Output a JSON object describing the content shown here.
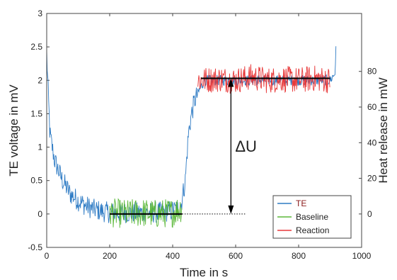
{
  "chart_data": {
    "type": "line",
    "xlabel": "Time  in  s",
    "ylabel_left": "TE voltage  in  mV",
    "ylabel_right": "Heat release  in  mW",
    "xlim": [
      0,
      1000
    ],
    "ylim_left": [
      -0.5,
      3
    ],
    "ylim_right": [
      -18.75,
      112.5
    ],
    "x_ticks": [
      "0",
      "200",
      "400",
      "600",
      "800",
      "1000"
    ],
    "y_ticks_left": [
      "-0.5",
      "0",
      "0.5",
      "1",
      "1.5",
      "2",
      "2.5",
      "3"
    ],
    "y_ticks_right": [
      "0",
      "20",
      "40",
      "60",
      "80"
    ],
    "grid": false,
    "legend_position": "bottom-right",
    "colors": {
      "TE": "#2e7bc4",
      "Baseline": "#5cb83a",
      "Reaction": "#e8393a",
      "TE_legend_text": "#8b1a1a"
    },
    "series": [
      {
        "name": "TE",
        "x": [
          0,
          10,
          25,
          50,
          75,
          100,
          125,
          150,
          175,
          200,
          250,
          300,
          350,
          400,
          425,
          440,
          450,
          460,
          470,
          480,
          490,
          500,
          600,
          700,
          800,
          900,
          915,
          920
        ],
        "y": [
          2.4,
          1.2,
          0.8,
          0.5,
          0.3,
          0.2,
          0.12,
          0.07,
          0.04,
          0.02,
          0.02,
          0.02,
          0.02,
          0.05,
          0.1,
          0.5,
          1.2,
          1.5,
          1.7,
          1.8,
          1.9,
          2.0,
          2.0,
          2.0,
          2.0,
          2.0,
          2.1,
          2.6
        ]
      },
      {
        "name": "Baseline",
        "x": [
          200,
          250,
          300,
          350,
          400,
          430
        ],
        "y": [
          0.02,
          0.0,
          0.02,
          0.0,
          0.02,
          0.1
        ]
      },
      {
        "name": "Reaction",
        "x": [
          480,
          550,
          600,
          650,
          700,
          750,
          800,
          850,
          900
        ],
        "y": [
          2.0,
          2.02,
          2.0,
          2.05,
          2.0,
          2.02,
          2.0,
          2.03,
          2.0
        ]
      }
    ],
    "reference_lines": [
      {
        "label": "baseline mean",
        "x": [
          200,
          430
        ],
        "y": 0
      },
      {
        "label": "reaction mean",
        "x": [
          490,
          900
        ],
        "y": 2.03
      },
      {
        "label": "baseline extension",
        "x": [
          430,
          630
        ],
        "y": 0,
        "style": "dotted"
      }
    ],
    "annotation": {
      "text": "ΔU",
      "x": 585,
      "y_from": 0,
      "y_to": 2.03
    }
  }
}
